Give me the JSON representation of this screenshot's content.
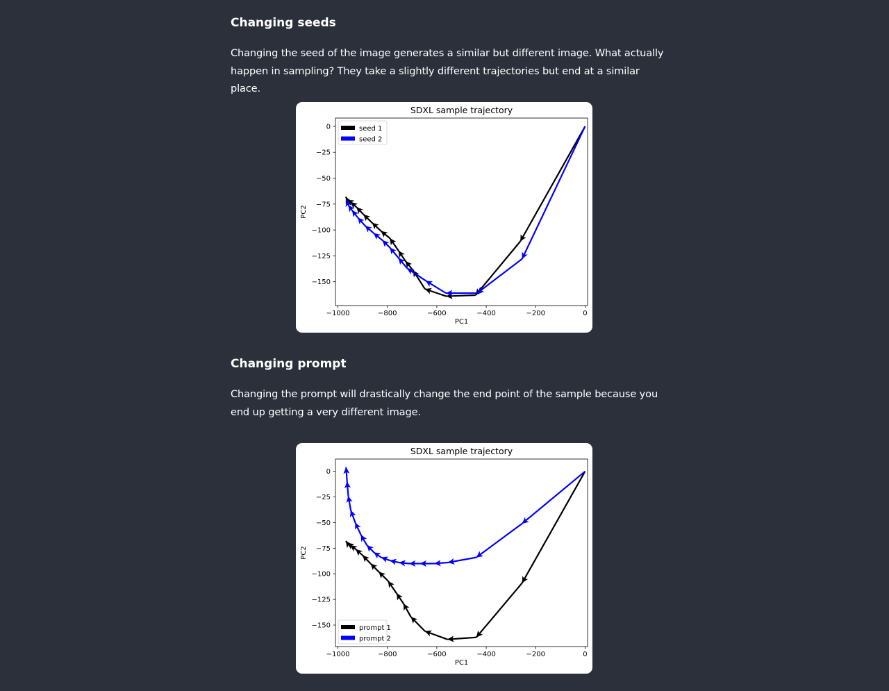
{
  "sections": [
    {
      "heading": "Changing seeds",
      "paragraph": "Changing the seed of the image generates a similar but different image. What actually happen in sampling? They take a slightly different trajectories but end at a similar place."
    },
    {
      "heading": "Changing prompt",
      "paragraph": "Changing the prompt will drastically change the end point of the sample because you end up getting a very different image."
    }
  ],
  "chart_data": [
    {
      "type": "line",
      "title": "SDXL sample trajectory",
      "xlabel": "PC1",
      "ylabel": "PC2",
      "xlim": [
        -1010,
        10
      ],
      "ylim": [
        -173,
        8
      ],
      "xticks": [
        -1000,
        -800,
        -600,
        -400,
        -200,
        0
      ],
      "xtick_labels": [
        "−1000",
        "−800",
        "−600",
        "−400",
        "−200",
        "0"
      ],
      "yticks": [
        0,
        -25,
        -50,
        -75,
        -100,
        -125,
        -150
      ],
      "ytick_labels": [
        "0",
        "−25",
        "−50",
        "−75",
        "−100",
        "−125",
        "−150"
      ],
      "legend_position": "top-left",
      "series": [
        {
          "name": "seed 1",
          "color": "#000000",
          "style": "arrows",
          "x": [
            0,
            -262,
            -443,
            -562,
            -648,
            -696,
            -727,
            -755,
            -790,
            -826,
            -862,
            -897,
            -925,
            -948,
            -962,
            -968
          ],
          "y": [
            0,
            -111,
            -163,
            -164,
            -157,
            -139,
            -130,
            -120,
            -108,
            -101,
            -93,
            -85,
            -78,
            -73,
            -71,
            -68
          ]
        },
        {
          "name": "seed 2",
          "color": "#0000ff",
          "style": "arrows",
          "x": [
            0,
            -255,
            -437,
            -563,
            -645,
            -720,
            -755,
            -790,
            -820,
            -856,
            -890,
            -920,
            -943,
            -958,
            -965
          ],
          "y": [
            0,
            -128,
            -161,
            -161,
            -149,
            -137,
            -127,
            -117,
            -110,
            -103,
            -96,
            -88,
            -81,
            -76,
            -71
          ]
        }
      ]
    },
    {
      "type": "line",
      "title": "SDXL sample trajectory",
      "xlabel": "PC1",
      "ylabel": "PC2",
      "xlim": [
        -1010,
        10
      ],
      "ylim": [
        -171,
        12
      ],
      "xticks": [
        -1000,
        -800,
        -600,
        -400,
        -200,
        0
      ],
      "xtick_labels": [
        "−1000",
        "−800",
        "−600",
        "−400",
        "−200",
        "0"
      ],
      "yticks": [
        0,
        -25,
        -50,
        -75,
        -100,
        -125,
        -150
      ],
      "ytick_labels": [
        "0",
        "−25",
        "−50",
        "−75",
        "−100",
        "−125",
        "−150"
      ],
      "legend_position": "lower-left",
      "series": [
        {
          "name": "prompt 1",
          "color": "#000000",
          "style": "arrows",
          "x": [
            0,
            -255,
            -440,
            -557,
            -648,
            -705,
            -735,
            -763,
            -797,
            -835,
            -868,
            -900,
            -928,
            -950,
            -962,
            -968
          ],
          "y": [
            0,
            -109,
            -162,
            -164,
            -156,
            -142,
            -129,
            -119,
            -107,
            -98,
            -90,
            -82,
            -76,
            -72,
            -70,
            -68
          ]
        },
        {
          "name": "prompt 2",
          "color": "#0000ff",
          "style": "arrows",
          "x": [
            0,
            -255,
            -440,
            -555,
            -610,
            -668,
            -712,
            -753,
            -790,
            -825,
            -855,
            -883,
            -907,
            -930,
            -948,
            -958,
            -963,
            -967
          ],
          "y": [
            0,
            -51,
            -84,
            -89,
            -90,
            -90,
            -90,
            -89,
            -87,
            -84,
            -79,
            -72,
            -62,
            -50,
            -38,
            -24,
            -10,
            4
          ]
        }
      ]
    }
  ]
}
